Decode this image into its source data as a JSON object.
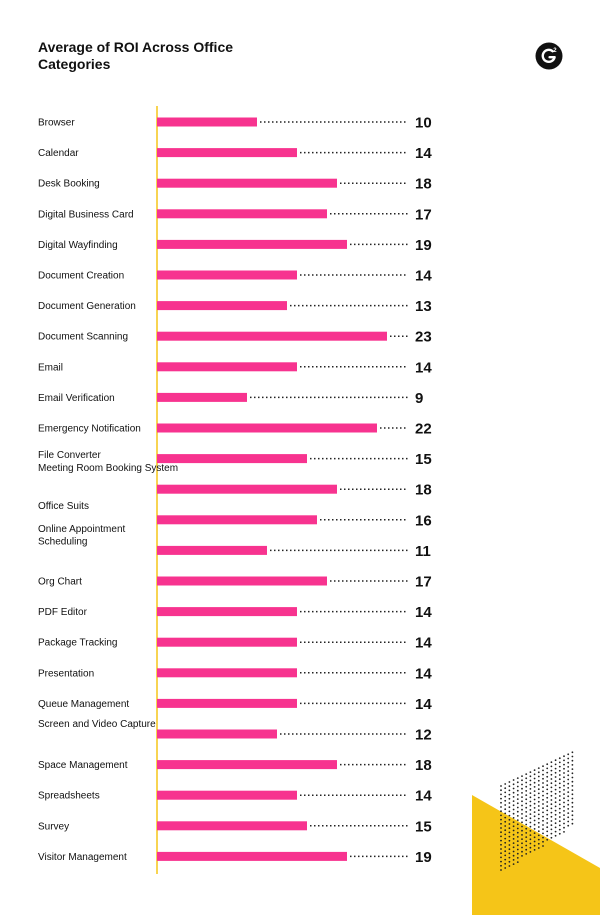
{
  "chart_data": {
    "type": "bar",
    "orientation": "horizontal",
    "title": "Average of ROI Across Office Categories",
    "xlabel": "",
    "ylabel": "",
    "xlim": [
      0,
      25
    ],
    "grid": false,
    "categories": [
      "Browser",
      "Calendar",
      "Desk Booking",
      "Digital Business Card",
      "Digital Wayfinding",
      "Document Creation",
      "Document Generation",
      "Document Scanning",
      "Email",
      "Email Verification",
      "Emergency Notification",
      "File Converter",
      "Meeting Room Booking System",
      "Office Suits",
      "Online Appointment Scheduling",
      "Org Chart",
      "PDF Editor",
      "Package Tracking",
      "Presentation",
      "Queue Management",
      "Screen and Video Capture",
      "Space Management",
      "Spreadsheets",
      "Survey",
      "Visitor Management"
    ],
    "values": [
      10,
      14,
      18,
      17,
      19,
      14,
      13,
      23,
      14,
      9,
      22,
      15,
      18,
      16,
      11,
      17,
      14,
      14,
      14,
      14,
      12,
      18,
      14,
      15,
      19
    ]
  },
  "colors": {
    "bar": "#f7338f",
    "axis": "#f5c518",
    "dots": "#222222",
    "accent_triangle": "#f5c518"
  },
  "logo": {
    "icon": "g2-logo-icon"
  }
}
